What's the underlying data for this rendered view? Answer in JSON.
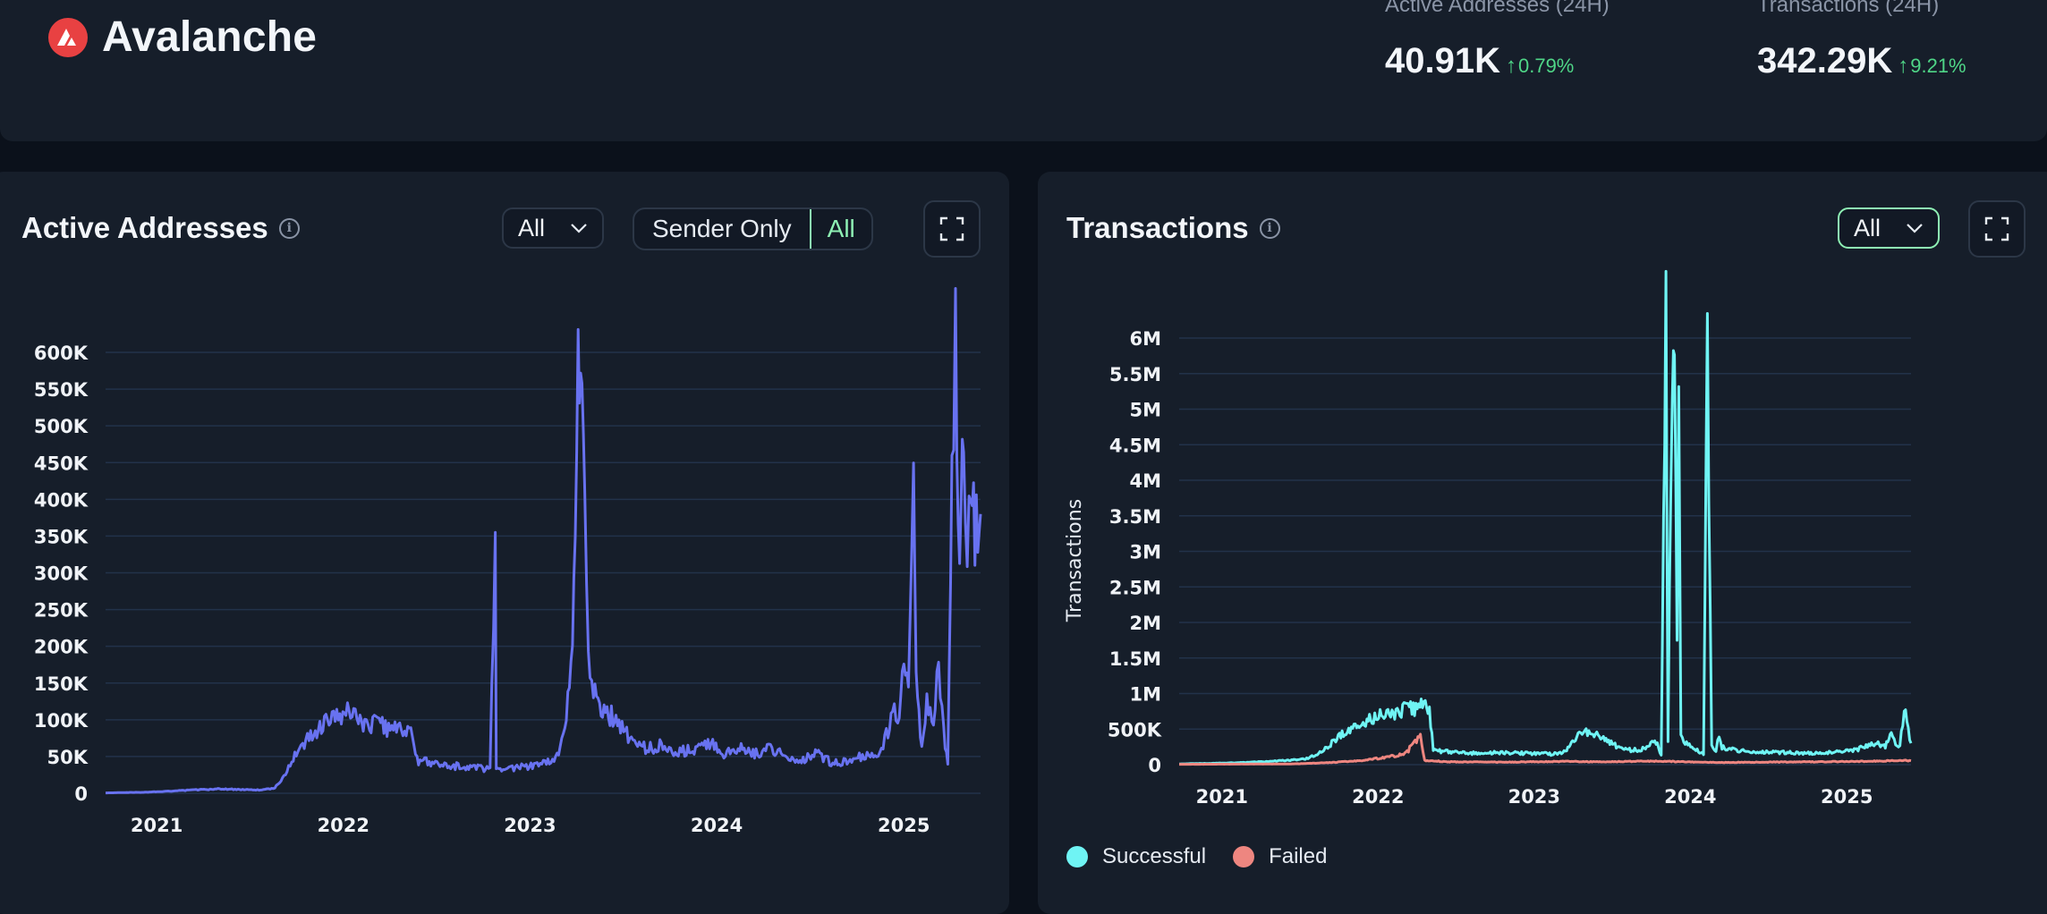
{
  "header": {
    "chain_name": "Avalanche",
    "stats": [
      {
        "label": "Active Addresses (24H)",
        "value": "40.91K",
        "change": "0.79%"
      },
      {
        "label": "Transactions (24H)",
        "value": "342.29K",
        "change": "9.21%"
      }
    ]
  },
  "active_panel": {
    "title": "Active Addresses",
    "range_label": "All",
    "segment_options": [
      "Sender Only",
      "All"
    ],
    "segment_selected": "All"
  },
  "tx_panel": {
    "title": "Transactions",
    "range_label": "All",
    "legend": [
      {
        "label": "Successful",
        "color": "#6ff4f4"
      },
      {
        "label": "Failed",
        "color": "#ee8680"
      }
    ]
  },
  "colors": {
    "accent": "#8ef0b4",
    "active_line": "#6872f0",
    "positive": "#4fd687",
    "brand": "#e84142"
  },
  "chart_data": [
    {
      "type": "line",
      "title": "Active Addresses",
      "xlabel": "",
      "ylabel": "",
      "x_ticks": [
        "2021",
        "2022",
        "2023",
        "2024",
        "2025"
      ],
      "y_ticks": [
        "0",
        "50K",
        "100K",
        "150K",
        "200K",
        "250K",
        "300K",
        "350K",
        "400K",
        "450K",
        "500K",
        "550K",
        "600K"
      ],
      "ylim": [
        0,
        600000
      ],
      "xlim": [
        "2020-09-23",
        "2025-05-31"
      ],
      "grid": true,
      "series": [
        {
          "color": "#6872f0",
          "x": [
            "2020-09-23",
            "2020-12-15",
            "2021-03-01",
            "2021-05-01",
            "2021-06-15",
            "2021-07-20",
            "2021-08-20",
            "2021-09-10",
            "2021-10-01",
            "2021-11-01",
            "2021-12-01",
            "2022-01-15",
            "2022-02-15",
            "2022-03-15",
            "2022-04-15",
            "2022-05-10",
            "2022-05-25",
            "2022-07-15",
            "2022-09-15",
            "2022-10-15",
            "2022-10-25",
            "2022-10-27",
            "2022-10-29",
            "2022-11-15",
            "2023-01-15",
            "2023-02-20",
            "2023-03-10",
            "2023-03-25",
            "2023-04-05",
            "2023-04-10",
            "2023-04-18",
            "2023-04-25",
            "2023-05-05",
            "2023-05-20",
            "2023-06-15",
            "2023-07-15",
            "2023-08-15",
            "2023-09-15",
            "2023-10-15",
            "2023-11-15",
            "2023-12-15",
            "2024-01-15",
            "2024-02-15",
            "2024-03-15",
            "2024-04-15",
            "2024-05-15",
            "2024-06-15",
            "2024-07-15",
            "2024-08-15",
            "2024-09-15",
            "2024-10-15",
            "2024-11-15",
            "2024-12-01",
            "2024-12-10",
            "2024-12-20",
            "2025-01-01",
            "2025-01-10",
            "2025-01-20",
            "2025-01-25",
            "2025-02-05",
            "2025-02-15",
            "2025-02-28",
            "2025-03-10",
            "2025-03-20",
            "2025-03-28",
            "2025-04-05",
            "2025-04-12",
            "2025-04-20",
            "2025-04-28",
            "2025-05-05",
            "2025-05-12",
            "2025-05-20",
            "2025-05-31"
          ],
          "values": [
            500,
            1500,
            4000,
            6000,
            5000,
            4500,
            7000,
            25000,
            55000,
            80000,
            100000,
            110000,
            95000,
            92000,
            85000,
            90000,
            45000,
            38000,
            35000,
            32000,
            345000,
            30000,
            32000,
            34000,
            38000,
            45000,
            85000,
            200000,
            580000,
            590000,
            450000,
            180000,
            150000,
            120000,
            100000,
            75000,
            60000,
            65000,
            55000,
            60000,
            70000,
            55000,
            65000,
            55000,
            60000,
            52000,
            45000,
            55000,
            40000,
            45000,
            50000,
            55000,
            85000,
            120000,
            90000,
            180000,
            160000,
            400000,
            150000,
            60000,
            120000,
            90000,
            180000,
            80000,
            45000,
            420000,
            610000,
            300000,
            500000,
            290000,
            450000,
            350000,
            380000
          ]
        }
      ]
    },
    {
      "type": "line",
      "title": "Transactions",
      "xlabel": "",
      "ylabel": "Transactions",
      "x_ticks": [
        "2021",
        "2022",
        "2023",
        "2024",
        "2025"
      ],
      "y_ticks": [
        "0",
        "500K",
        "1M",
        "1.5M",
        "2M",
        "2.5M",
        "3M",
        "3.5M",
        "4M",
        "4.5M",
        "5M",
        "5.5M",
        "6M"
      ],
      "ylim": [
        0,
        6000000
      ],
      "xlim": [
        "2020-09-23",
        "2025-05-31"
      ],
      "grid": true,
      "legend": "bottom-left",
      "series": [
        {
          "name": "Successful",
          "color": "#6ff4f4",
          "x": [
            "2020-09-23",
            "2020-12-15",
            "2021-03-01",
            "2021-06-01",
            "2021-07-15",
            "2021-08-15",
            "2021-09-15",
            "2021-10-15",
            "2021-11-15",
            "2021-12-15",
            "2022-01-15",
            "2022-02-15",
            "2022-03-15",
            "2022-04-15",
            "2022-05-01",
            "2022-05-10",
            "2022-06-15",
            "2022-08-15",
            "2022-10-15",
            "2022-12-15",
            "2023-02-15",
            "2023-03-15",
            "2023-04-01",
            "2023-04-20",
            "2023-05-15",
            "2023-06-15",
            "2023-07-15",
            "2023-08-15",
            "2023-09-15",
            "2023-10-10",
            "2023-10-25",
            "2023-11-05",
            "2023-11-10",
            "2023-11-20",
            "2023-11-25",
            "2023-12-01",
            "2023-12-05",
            "2023-12-10",
            "2023-12-20",
            "2024-01-05",
            "2024-01-20",
            "2024-02-01",
            "2024-02-10",
            "2024-02-20",
            "2024-03-01",
            "2024-03-05",
            "2024-03-15",
            "2024-04-15",
            "2024-06-15",
            "2024-08-15",
            "2024-10-15",
            "2024-12-15",
            "2025-01-15",
            "2025-02-15",
            "2025-03-15",
            "2025-04-01",
            "2025-04-15",
            "2025-04-25",
            "2025-05-05",
            "2025-05-15",
            "2025-05-31"
          ],
          "values": [
            10000,
            20000,
            30000,
            60000,
            80000,
            150000,
            300000,
            450000,
            550000,
            650000,
            700000,
            750000,
            780000,
            820000,
            800000,
            200000,
            180000,
            160000,
            170000,
            160000,
            150000,
            180000,
            300000,
            500000,
            450000,
            350000,
            250000,
            200000,
            220000,
            350000,
            150000,
            6200000,
            300000,
            5900000,
            6100000,
            2000000,
            5000000,
            400000,
            300000,
            250000,
            200000,
            150000,
            6000000,
            300000,
            200000,
            400000,
            250000,
            200000,
            180000,
            170000,
            160000,
            180000,
            200000,
            250000,
            300000,
            250000,
            500000,
            300000,
            250000,
            800000,
            300000
          ]
        },
        {
          "name": "Failed",
          "color": "#ee8680",
          "x": [
            "2020-09-23",
            "2021-06-15",
            "2021-09-15",
            "2021-12-01",
            "2022-01-15",
            "2022-02-15",
            "2022-03-10",
            "2022-03-25",
            "2022-04-01",
            "2022-04-10",
            "2022-04-20",
            "2022-06-15",
            "2022-10-15",
            "2023-03-15",
            "2023-06-15",
            "2023-10-15",
            "2023-12-15",
            "2024-01-15",
            "2024-03-15",
            "2024-06-15",
            "2024-10-15",
            "2025-01-15",
            "2025-03-15",
            "2025-05-15",
            "2025-05-31"
          ],
          "values": [
            5000,
            10000,
            30000,
            60000,
            100000,
            130000,
            180000,
            300000,
            350000,
            380000,
            60000,
            40000,
            35000,
            45000,
            40000,
            50000,
            40000,
            35000,
            30000,
            35000,
            40000,
            45000,
            50000,
            60000,
            55000
          ]
        }
      ]
    }
  ]
}
